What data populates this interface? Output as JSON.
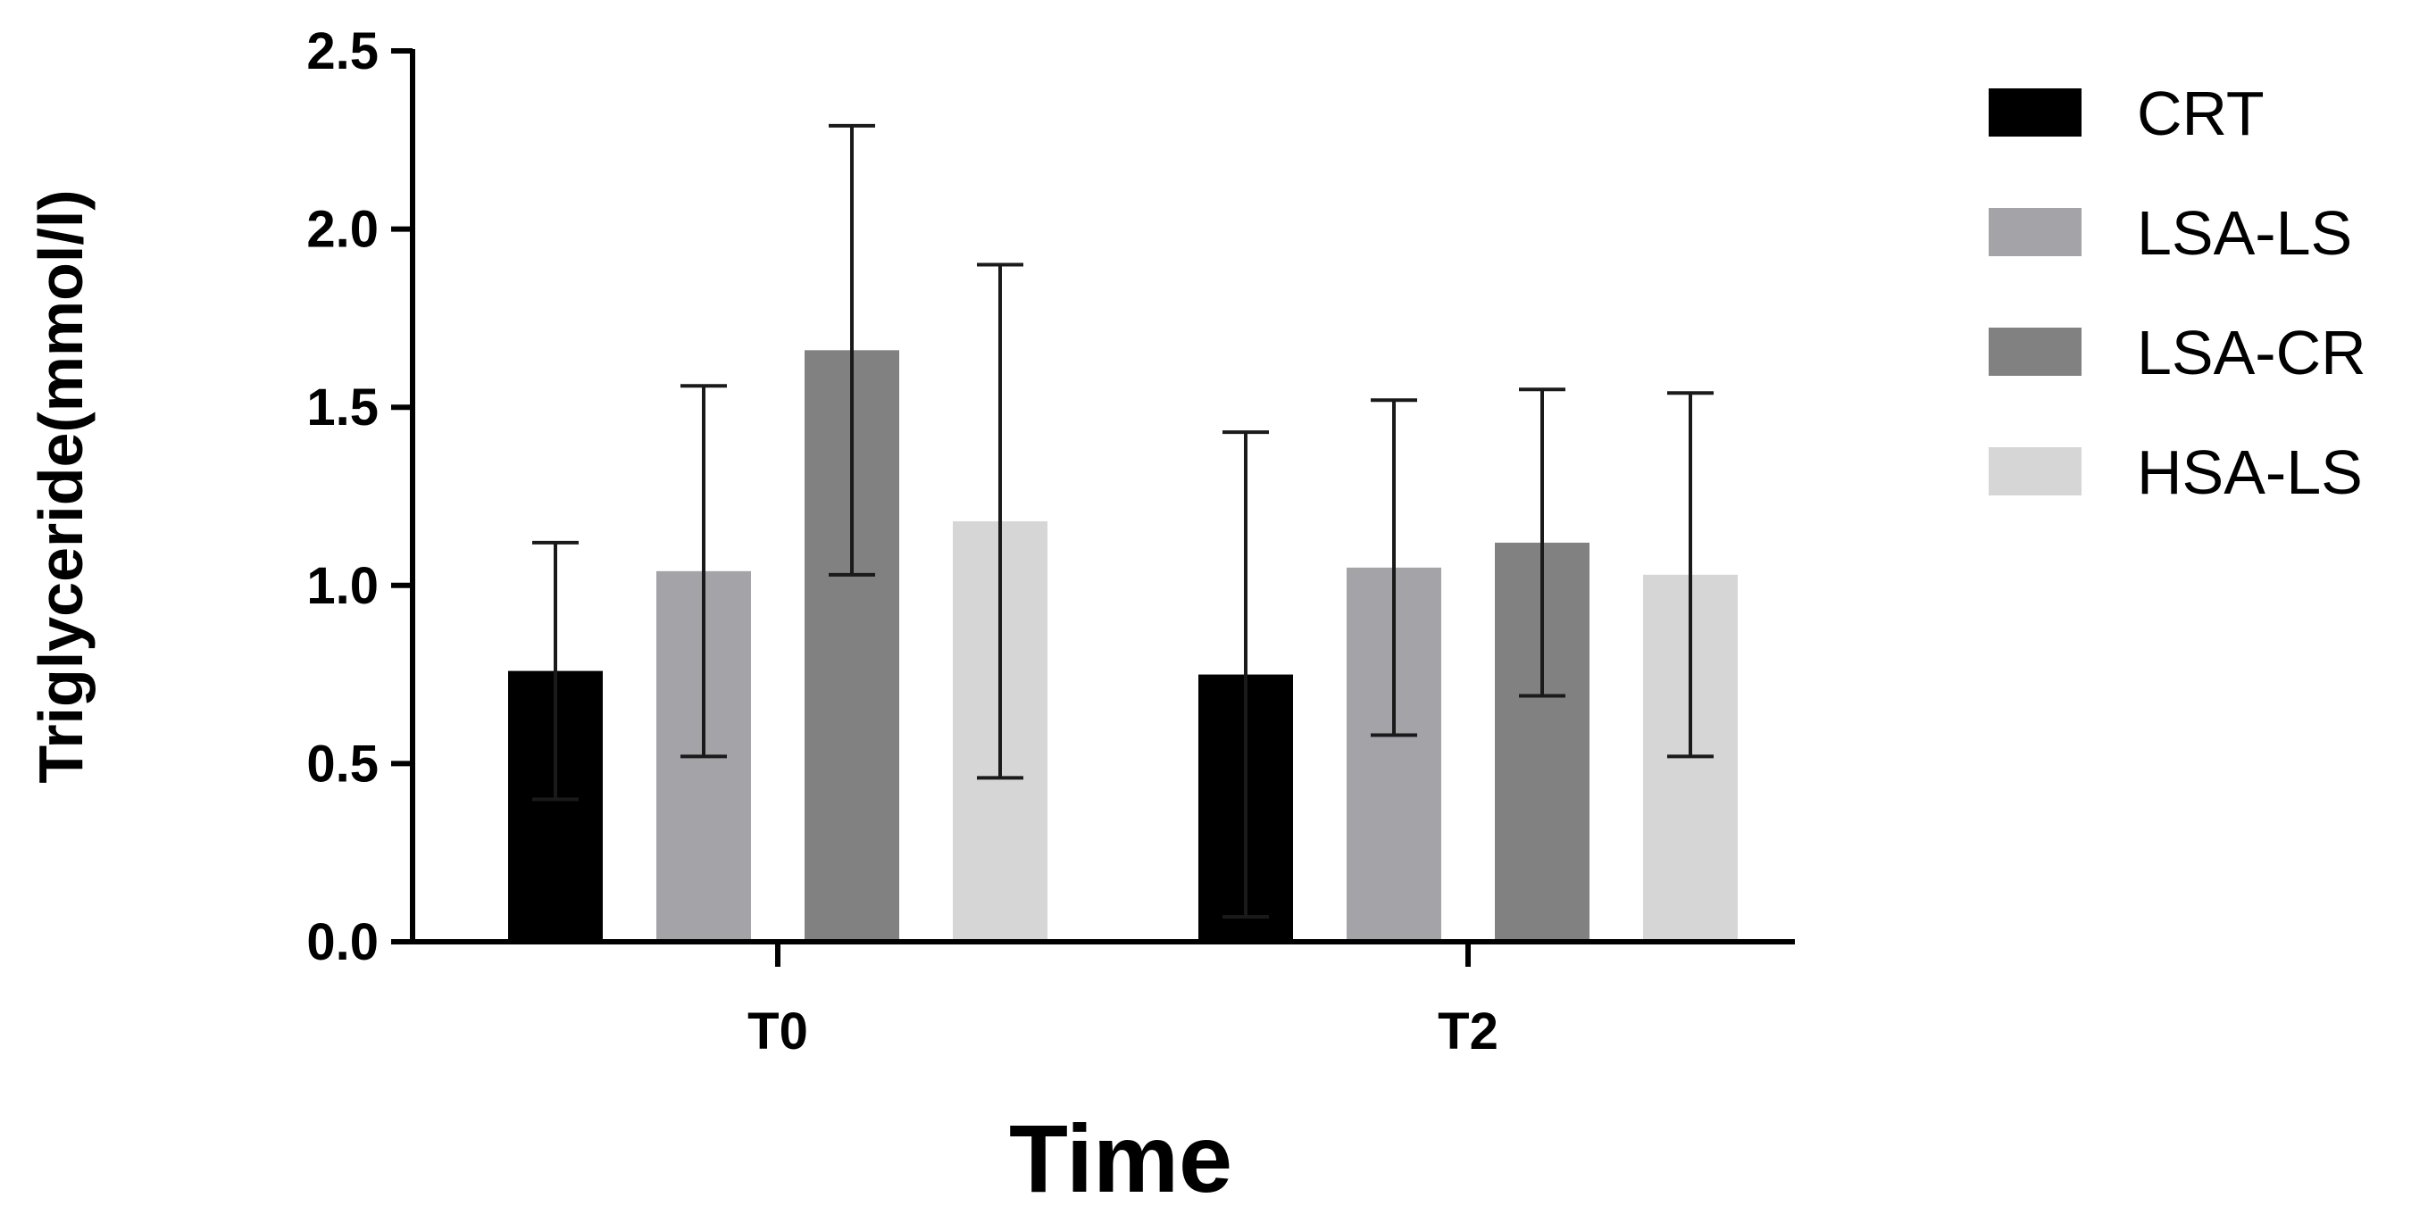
{
  "chart_data": {
    "type": "bar",
    "title": "",
    "xlabel": "Time",
    "ylabel": "Triglyceride(mmol/l)",
    "categories": [
      "T0",
      "T2"
    ],
    "ylim": [
      0,
      2.5
    ],
    "yticks": [
      0.0,
      0.5,
      1.0,
      1.5,
      2.0,
      2.5
    ],
    "ytick_labels": [
      "0.0",
      "0.5",
      "1.0",
      "1.5",
      "2.0",
      "2.5"
    ],
    "error_bars": "symmetric",
    "grid": false,
    "legend_position": "top-right",
    "series": [
      {
        "name": "CRT",
        "color": "#000000",
        "values": [
          0.76,
          0.75
        ],
        "errors": [
          0.36,
          0.68
        ]
      },
      {
        "name": "LSA-LS",
        "color": "#a4a3a8",
        "values": [
          1.04,
          1.05
        ],
        "errors": [
          0.52,
          0.47
        ]
      },
      {
        "name": "LSA-CR",
        "color": "#818181",
        "values": [
          1.66,
          1.12
        ],
        "errors": [
          0.63,
          0.43
        ]
      },
      {
        "name": "HSA-LS",
        "color": "#d6d6d6",
        "values": [
          1.18,
          1.03
        ],
        "errors": [
          0.72,
          0.51
        ]
      }
    ]
  }
}
